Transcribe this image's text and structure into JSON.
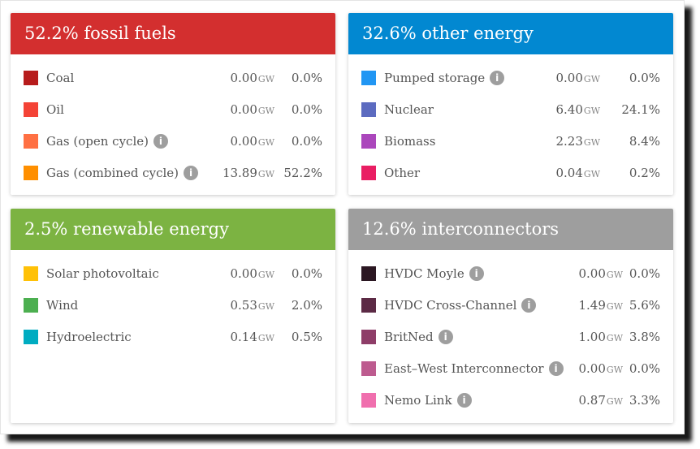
{
  "colors": {
    "fossil": "#d32f2f",
    "other": "#0288d1",
    "renewable": "#7cb342",
    "interconnectors": "#9e9e9e"
  },
  "unit": "GW",
  "info_icon_glyph": "i",
  "panels": {
    "fossil": {
      "title": "52.2% fossil fuels",
      "rows": [
        {
          "name": "Coal",
          "gw": "0.00",
          "pct": "0.0%",
          "color": "#b71c1c",
          "info": false
        },
        {
          "name": "Oil",
          "gw": "0.00",
          "pct": "0.0%",
          "color": "#f44336",
          "info": false
        },
        {
          "name": "Gas (open cycle)",
          "gw": "0.00",
          "pct": "0.0%",
          "color": "#ff7043",
          "info": true
        },
        {
          "name": "Gas (combined cycle)",
          "gw": "13.89",
          "pct": "52.2%",
          "color": "#ff8f00",
          "info": true
        }
      ]
    },
    "other": {
      "title": "32.6% other energy",
      "rows": [
        {
          "name": "Pumped storage",
          "gw": "0.00",
          "pct": "0.0%",
          "color": "#2196f3",
          "info": true
        },
        {
          "name": "Nuclear",
          "gw": "6.40",
          "pct": "24.1%",
          "color": "#5c6bc0",
          "info": false
        },
        {
          "name": "Biomass",
          "gw": "2.23",
          "pct": "8.4%",
          "color": "#ab47bc",
          "info": false
        },
        {
          "name": "Other",
          "gw": "0.04",
          "pct": "0.2%",
          "color": "#e91e63",
          "info": false
        }
      ]
    },
    "renewable": {
      "title": "2.5% renewable energy",
      "rows": [
        {
          "name": "Solar photovoltaic",
          "gw": "0.00",
          "pct": "0.0%",
          "color": "#ffc107",
          "info": false
        },
        {
          "name": "Wind",
          "gw": "0.53",
          "pct": "2.0%",
          "color": "#4caf50",
          "info": false
        },
        {
          "name": "Hydroelectric",
          "gw": "0.14",
          "pct": "0.5%",
          "color": "#00acc1",
          "info": false
        }
      ]
    },
    "interconnectors": {
      "title": "12.6% interconnectors",
      "rows": [
        {
          "name": "HVDC Moyle",
          "gw": "0.00",
          "pct": "0.0%",
          "color": "#2b1722",
          "info": true
        },
        {
          "name": "HVDC Cross-Channel",
          "gw": "1.49",
          "pct": "5.6%",
          "color": "#5c2a45",
          "info": true
        },
        {
          "name": "BritNed",
          "gw": "1.00",
          "pct": "3.8%",
          "color": "#8e3d68",
          "info": true
        },
        {
          "name": "East–West Interconnector",
          "gw": "0.00",
          "pct": "0.0%",
          "color": "#bd5b8f",
          "info": true
        },
        {
          "name": "Nemo Link",
          "gw": "0.87",
          "pct": "3.3%",
          "color": "#f06fae",
          "info": true
        }
      ]
    }
  }
}
